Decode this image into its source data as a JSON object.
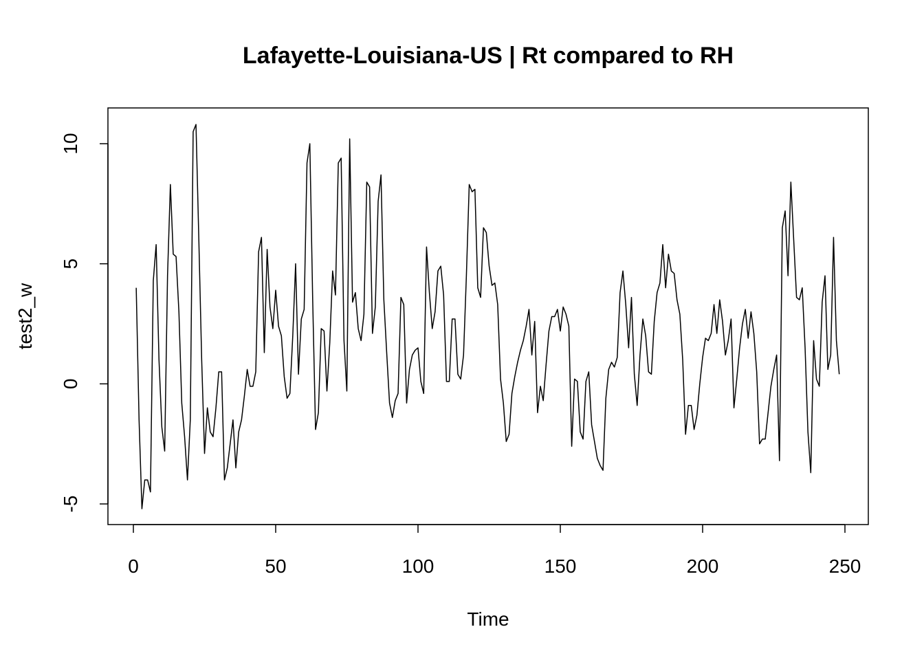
{
  "chart_data": {
    "type": "line",
    "title": "Lafayette-Louisiana-US | Rt compared to RH",
    "xlabel": "Time",
    "ylabel": "test2_w",
    "xlim": [
      1,
      248
    ],
    "ylim": [
      -5.2,
      10.8
    ],
    "x_ticks": [
      0,
      50,
      100,
      150,
      200,
      250
    ],
    "x_tick_labels": [
      "0",
      "50",
      "100",
      "150",
      "200",
      "250"
    ],
    "y_ticks": [
      -5,
      0,
      5,
      10
    ],
    "y_tick_labels": [
      "-5",
      "0",
      "5",
      "10"
    ],
    "grid": false,
    "color": "#000000",
    "x_start": 1,
    "series": [
      {
        "values": [
          4.0,
          -1.5,
          -5.2,
          -4.0,
          -4.0,
          -4.5,
          4.3,
          5.8,
          1.0,
          -1.8,
          -2.8,
          4.5,
          8.3,
          5.4,
          5.3,
          3.0,
          -0.8,
          -2.2,
          -4.0,
          -1.5,
          10.5,
          10.8,
          6.0,
          1.0,
          -2.9,
          -1.0,
          -2.0,
          -2.2,
          -1.0,
          0.5,
          0.5,
          -4.0,
          -3.5,
          -2.5,
          -1.5,
          -3.5,
          -2.0,
          -1.5,
          -0.5,
          0.6,
          -0.1,
          -0.1,
          0.5,
          5.5,
          6.1,
          1.3,
          5.6,
          3.2,
          2.3,
          3.9,
          2.4,
          2.0,
          0.3,
          -0.6,
          -0.4,
          2.0,
          5.0,
          0.4,
          2.7,
          3.1,
          9.2,
          10.0,
          3.5,
          -1.9,
          -1.2,
          2.3,
          2.2,
          -0.3,
          1.7,
          4.7,
          3.7,
          9.2,
          9.4,
          1.8,
          -0.3,
          10.2,
          3.4,
          3.8,
          2.3,
          1.8,
          2.9,
          8.4,
          8.2,
          2.1,
          3.2,
          7.6,
          8.7,
          3.5,
          1.3,
          -0.8,
          -1.4,
          -0.7,
          -0.4,
          3.6,
          3.3,
          -0.8,
          0.6,
          1.2,
          1.4,
          1.5,
          0.1,
          -0.4,
          5.7,
          3.8,
          2.3,
          3.0,
          4.7,
          4.9,
          3.7,
          0.1,
          0.1,
          2.7,
          2.7,
          0.4,
          0.2,
          1.2,
          4.5,
          8.3,
          8.0,
          8.1,
          4.0,
          3.6,
          6.5,
          6.3,
          4.9,
          4.1,
          4.2,
          3.3,
          0.2,
          -0.8,
          -2.4,
          -2.1,
          -0.4,
          0.3,
          0.9,
          1.4,
          1.8,
          2.4,
          3.1,
          1.2,
          2.6,
          -1.2,
          -0.1,
          -0.7,
          0.8,
          2.2,
          2.8,
          2.8,
          3.1,
          2.2,
          3.2,
          2.9,
          2.4,
          -2.6,
          0.2,
          0.1,
          -2.0,
          -2.3,
          0.1,
          0.5,
          -1.7,
          -2.4,
          -3.1,
          -3.4,
          -3.6,
          -0.6,
          0.6,
          0.9,
          0.7,
          1.1,
          3.8,
          4.7,
          3.3,
          1.5,
          3.6,
          0.4,
          -0.9,
          1.2,
          2.7,
          2.0,
          0.5,
          0.4,
          2.6,
          3.8,
          4.2,
          5.8,
          4.0,
          5.4,
          4.7,
          4.6,
          3.5,
          2.9,
          1.0,
          -2.1,
          -0.9,
          -0.9,
          -1.9,
          -1.3,
          0.0,
          1.1,
          1.9,
          1.8,
          2.1,
          3.3,
          2.1,
          3.5,
          2.6,
          1.2,
          1.8,
          2.7,
          -1.0,
          0.2,
          1.5,
          2.5,
          3.1,
          1.9,
          3.0,
          2.1,
          0.5,
          -2.5,
          -2.3,
          -2.3,
          -1.2,
          -0.1,
          0.6,
          1.2,
          -3.2,
          6.5,
          7.2,
          4.5,
          8.4,
          6.0,
          3.6,
          3.5,
          4.0,
          1.5,
          -2.0,
          -3.7,
          1.8,
          0.2,
          -0.1,
          3.4,
          4.5,
          0.6,
          1.2,
          6.1,
          1.8,
          0.4
        ]
      }
    ]
  }
}
